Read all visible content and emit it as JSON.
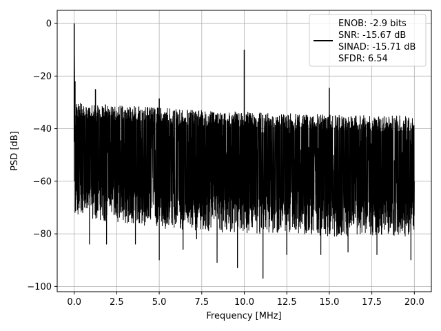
{
  "chart_data": {
    "type": "line",
    "title": "",
    "xlabel": "Frequency [MHz]",
    "ylabel": "PSD [dB]",
    "xlim": [
      -1.0,
      21.0
    ],
    "ylim": [
      -102,
      5
    ],
    "grid": true,
    "legend_position": "top-right",
    "line_color": "#000000",
    "xticks": [
      0.0,
      2.5,
      5.0,
      7.5,
      10.0,
      12.5,
      15.0,
      17.5,
      20.0
    ],
    "xtick_labels": [
      "0.0",
      "2.5",
      "5.0",
      "7.5",
      "10.0",
      "12.5",
      "15.0",
      "17.5",
      "20.0"
    ],
    "yticks": [
      0,
      -20,
      -40,
      -60,
      -80,
      -100
    ],
    "ytick_labels": [
      "0",
      "−20",
      "−40",
      "−60",
      "−80",
      "−100"
    ],
    "legend_entries": [
      "ENOB: -2.9 bits",
      "SNR: -15.67 dB",
      "SINAD: -15.71 dB",
      "SFDR: 6.54"
    ],
    "envelope": {
      "x": [
        0.05,
        2.5,
        5.0,
        7.5,
        10.0,
        12.5,
        15.0,
        17.5,
        20.0
      ],
      "upper": [
        -30,
        -31,
        -32,
        -33,
        -33.5,
        -34,
        -34.5,
        -35,
        -35
      ],
      "lower": [
        -72,
        -74,
        -76,
        -77,
        -78,
        -78,
        -79,
        -79,
        -79
      ]
    },
    "spikes": [
      {
        "x": 0.0,
        "y": 0
      },
      {
        "x": 0.05,
        "y": -22
      },
      {
        "x": 1.25,
        "y": -25
      },
      {
        "x": 5.0,
        "y": -28.5
      },
      {
        "x": 10.0,
        "y": -10
      },
      {
        "x": 15.0,
        "y": -24.5
      }
    ],
    "dips": [
      {
        "x": 0.9,
        "y": -84
      },
      {
        "x": 1.9,
        "y": -84
      },
      {
        "x": 3.6,
        "y": -84
      },
      {
        "x": 5.0,
        "y": -90
      },
      {
        "x": 6.4,
        "y": -86
      },
      {
        "x": 7.2,
        "y": -82
      },
      {
        "x": 8.4,
        "y": -91
      },
      {
        "x": 9.6,
        "y": -93
      },
      {
        "x": 11.1,
        "y": -97
      },
      {
        "x": 12.5,
        "y": -88
      },
      {
        "x": 14.5,
        "y": -88
      },
      {
        "x": 16.1,
        "y": -87
      },
      {
        "x": 17.8,
        "y": -88
      },
      {
        "x": 19.8,
        "y": -90
      }
    ]
  }
}
